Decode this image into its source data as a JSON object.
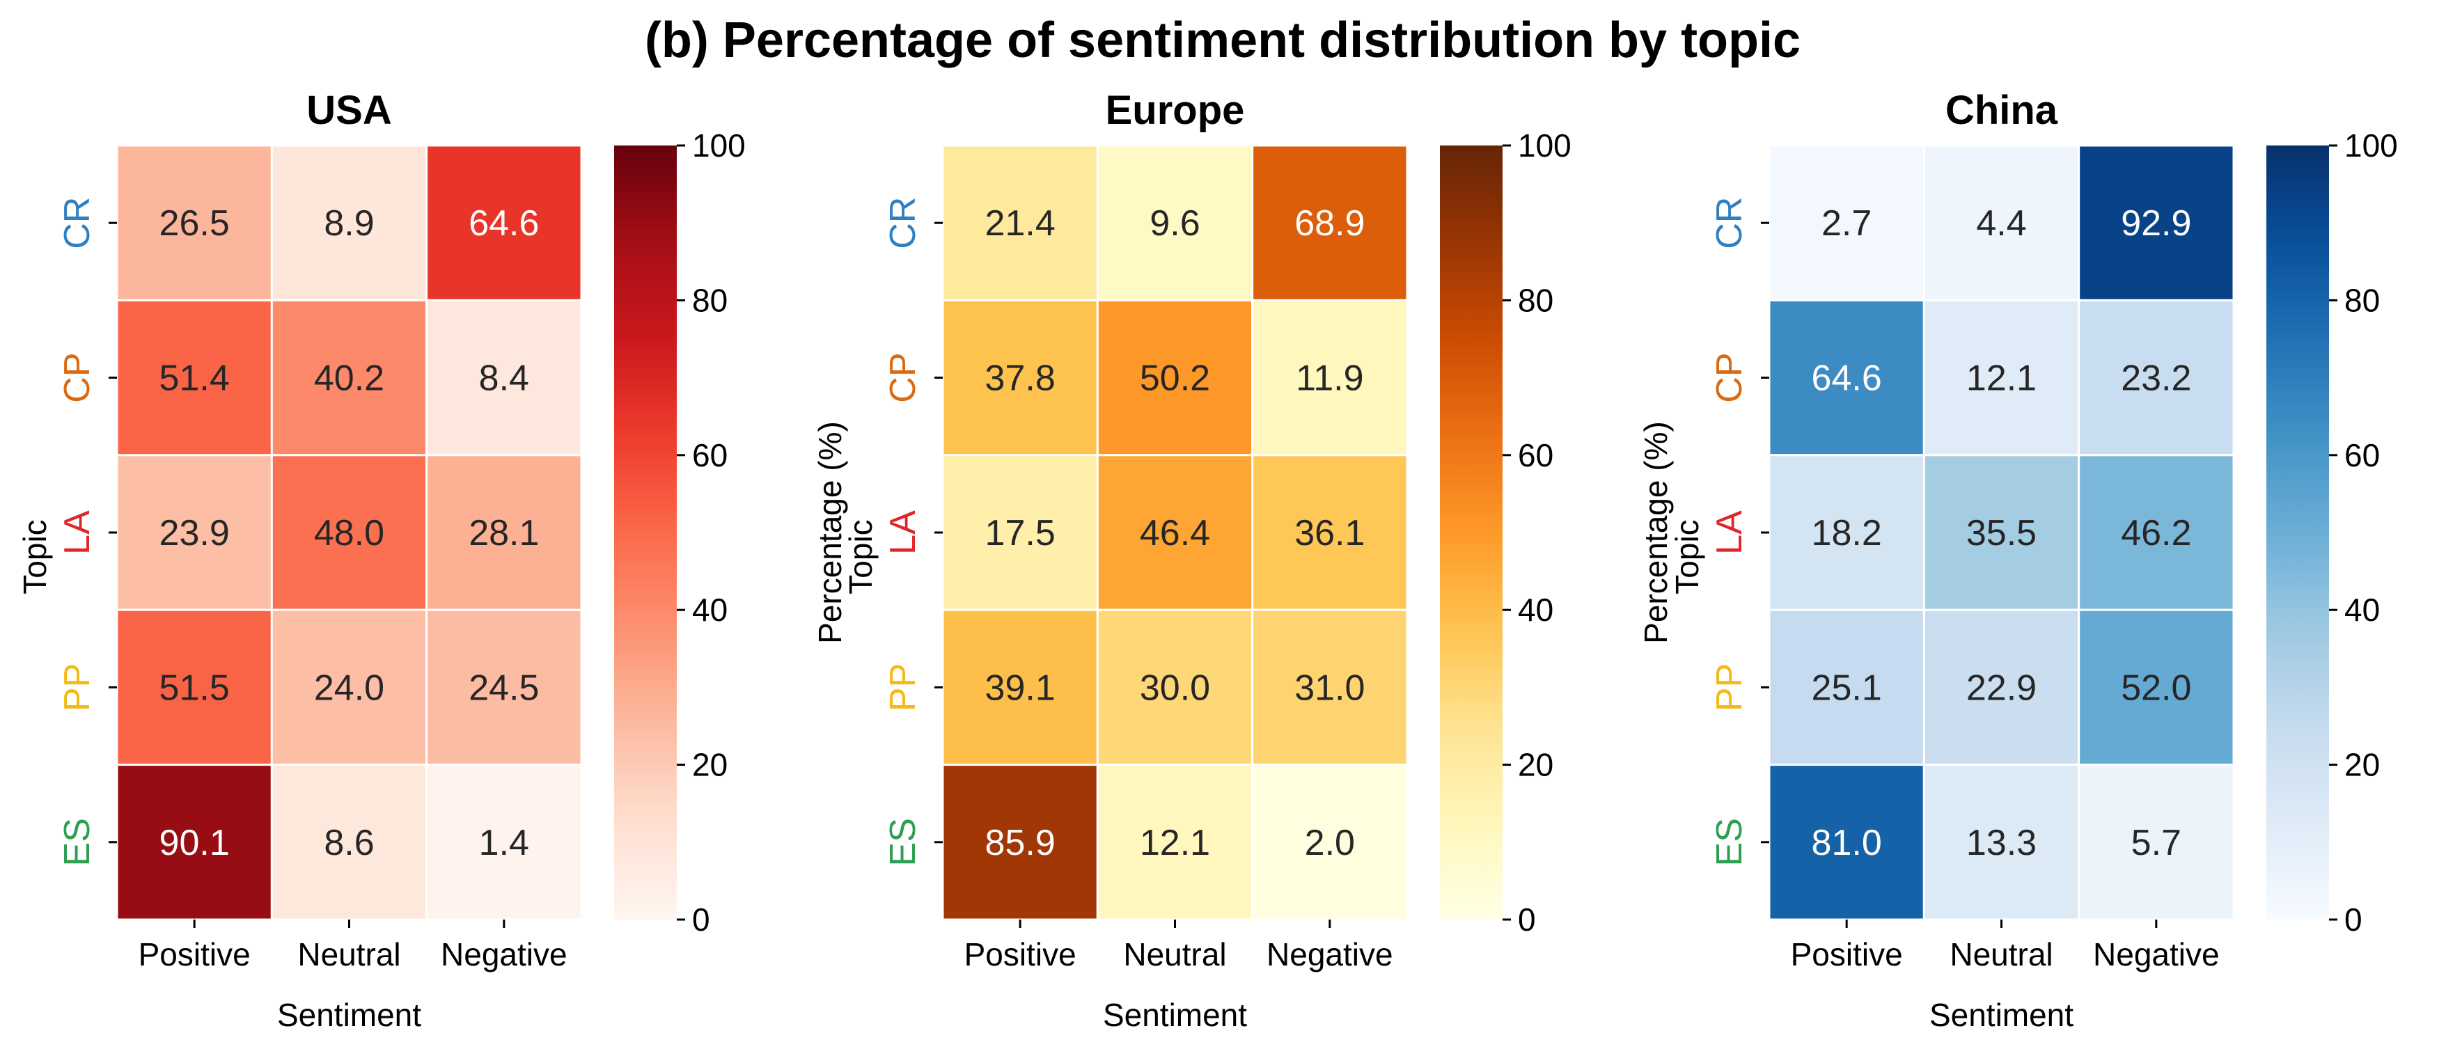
{
  "chart_data": {
    "type": "heatmap",
    "title": "(b) Percentage of sentiment distribution by topic",
    "xlabel": "Sentiment",
    "ylabel": "Topic",
    "x_categories": [
      "Positive",
      "Neutral",
      "Negative"
    ],
    "y_categories": [
      "CR",
      "CP",
      "LA",
      "PP",
      "ES"
    ],
    "y_category_colors": {
      "CR": "#2f7fc1",
      "CP": "#d96a12",
      "LA": "#e0262b",
      "PP": "#f5b915",
      "ES": "#2e9e50"
    },
    "colorbar": {
      "label": "Percentage (%)",
      "range": [
        0,
        100
      ],
      "ticks": [
        "0",
        "20",
        "40",
        "60",
        "80",
        "100"
      ]
    },
    "panels": [
      {
        "name": "USA",
        "colormap": "Reds",
        "colormap_stops": [
          "#fff5f0",
          "#fee0d2",
          "#fcbba1",
          "#fc9272",
          "#fb6a4a",
          "#ef3b2c",
          "#cb181d",
          "#a50f15",
          "#67000d"
        ],
        "values": [
          [
            26.5,
            8.9,
            64.6
          ],
          [
            51.4,
            40.2,
            8.4
          ],
          [
            23.9,
            48.0,
            28.1
          ],
          [
            51.5,
            24.0,
            24.5
          ],
          [
            90.1,
            8.6,
            1.4
          ]
        ],
        "labels": [
          [
            "26.5",
            "8.9",
            "64.6"
          ],
          [
            "51.4",
            "40.2",
            "8.4"
          ],
          [
            "23.9",
            "48.0",
            "28.1"
          ],
          [
            "51.5",
            "24.0",
            "24.5"
          ],
          [
            "90.1",
            "8.6",
            "1.4"
          ]
        ]
      },
      {
        "name": "Europe",
        "colormap": "YlOrBr",
        "colormap_stops": [
          "#ffffe5",
          "#fff7bc",
          "#fee391",
          "#fec44f",
          "#fe9929",
          "#ec7014",
          "#cc4c02",
          "#993404",
          "#662506"
        ],
        "values": [
          [
            21.4,
            9.6,
            68.9
          ],
          [
            37.8,
            50.2,
            11.9
          ],
          [
            17.5,
            46.4,
            36.1
          ],
          [
            39.1,
            30.0,
            31.0
          ],
          [
            85.9,
            12.1,
            2.0
          ]
        ],
        "labels": [
          [
            "21.4",
            "9.6",
            "68.9"
          ],
          [
            "37.8",
            "50.2",
            "11.9"
          ],
          [
            "17.5",
            "46.4",
            "36.1"
          ],
          [
            "39.1",
            "30.0",
            "31.0"
          ],
          [
            "85.9",
            "12.1",
            "2.0"
          ]
        ]
      },
      {
        "name": "China",
        "colormap": "Blues",
        "colormap_stops": [
          "#f7fbff",
          "#deebf7",
          "#c6dbef",
          "#9ecae1",
          "#6baed6",
          "#4292c6",
          "#2171b5",
          "#08519c",
          "#08306b"
        ],
        "values": [
          [
            2.7,
            4.4,
            92.9
          ],
          [
            64.6,
            12.1,
            23.2
          ],
          [
            18.2,
            35.5,
            46.2
          ],
          [
            25.1,
            22.9,
            52.0
          ],
          [
            81.0,
            13.3,
            5.7
          ]
        ],
        "labels": [
          [
            "2.7",
            "4.4",
            "92.9"
          ],
          [
            "64.6",
            "12.1",
            "23.2"
          ],
          [
            "18.2",
            "35.5",
            "46.2"
          ],
          [
            "25.1",
            "22.9",
            "52.0"
          ],
          [
            "81.0",
            "13.3",
            "5.7"
          ]
        ]
      }
    ]
  }
}
